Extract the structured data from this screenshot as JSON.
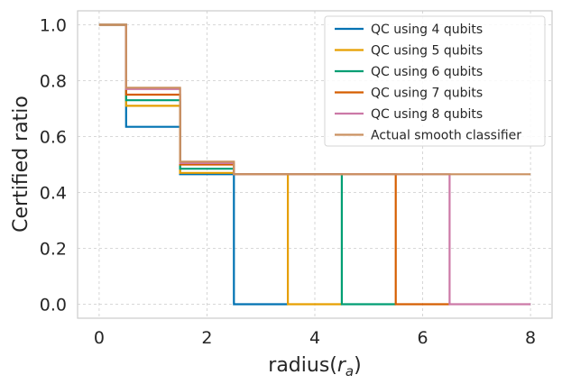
{
  "chart_data": {
    "type": "line",
    "step": true,
    "title": "",
    "xlabel": "radius($r_a$)",
    "xlabel_main": "radius(",
    "xlabel_var": "r",
    "xlabel_sub": "a",
    "xlabel_end": ")",
    "ylabel": "Certified ratio",
    "xlim": [
      -0.4,
      8.4
    ],
    "ylim": [
      -0.05,
      1.05
    ],
    "xticks": [
      0,
      2,
      4,
      6,
      8
    ],
    "yticks": [
      0.0,
      0.2,
      0.4,
      0.6,
      0.8,
      1.0
    ],
    "xtick_labels": [
      "0",
      "2",
      "4",
      "6",
      "8"
    ],
    "ytick_labels": [
      "0.0",
      "0.2",
      "0.4",
      "0.6",
      "0.8",
      "1.0"
    ],
    "grid": true,
    "legend_position": "upper-right",
    "series": [
      {
        "name": "QC using 4 qubits",
        "color": "#0072b2",
        "x": [
          0,
          0.5,
          0.5,
          1.5,
          1.5,
          2.5,
          2.5,
          3.5
        ],
        "y": [
          1.0,
          1.0,
          0.635,
          0.635,
          0.465,
          0.465,
          0.0,
          0.0
        ]
      },
      {
        "name": "QC using 5 qubits",
        "color": "#e69f00",
        "x": [
          0,
          0.5,
          0.5,
          1.5,
          1.5,
          2.5,
          2.5,
          3.5,
          3.5,
          4.5
        ],
        "y": [
          1.0,
          1.0,
          0.71,
          0.71,
          0.47,
          0.47,
          0.465,
          0.465,
          0.0,
          0.0
        ]
      },
      {
        "name": "QC using 6 qubits",
        "color": "#009e73",
        "x": [
          0,
          0.5,
          0.5,
          1.5,
          1.5,
          2.5,
          2.5,
          4.5,
          4.5,
          5.5
        ],
        "y": [
          1.0,
          1.0,
          0.73,
          0.73,
          0.485,
          0.485,
          0.465,
          0.465,
          0.0,
          0.0
        ]
      },
      {
        "name": "QC using 7 qubits",
        "color": "#d55e00",
        "x": [
          0,
          0.5,
          0.5,
          1.5,
          1.5,
          2.5,
          2.5,
          5.5,
          5.5,
          6.5
        ],
        "y": [
          1.0,
          1.0,
          0.75,
          0.75,
          0.5,
          0.5,
          0.465,
          0.465,
          0.0,
          0.0
        ]
      },
      {
        "name": "QC using 8 qubits",
        "color": "#cc79a7",
        "x": [
          0,
          0.5,
          0.5,
          1.5,
          1.5,
          2.5,
          2.5,
          6.5,
          6.5,
          8.0
        ],
        "y": [
          1.0,
          1.0,
          0.77,
          0.77,
          0.505,
          0.505,
          0.465,
          0.465,
          0.0,
          0.0
        ]
      },
      {
        "name": "Actual smooth classifier",
        "color": "#ca9161",
        "x": [
          0,
          0.5,
          0.5,
          1.5,
          1.5,
          2.5,
          2.5,
          8.0
        ],
        "y": [
          1.0,
          1.0,
          0.775,
          0.775,
          0.51,
          0.51,
          0.465,
          0.465
        ]
      }
    ]
  }
}
